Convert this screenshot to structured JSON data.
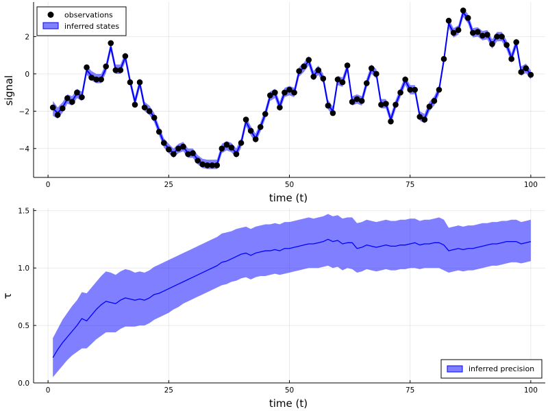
{
  "chart_data": [
    {
      "type": "line",
      "xlabel": "time (t)",
      "ylabel": "signal",
      "xlim": [
        -3,
        103
      ],
      "ylim": [
        -5.55,
        3.85
      ],
      "xticks": [
        0,
        25,
        50,
        75,
        100
      ],
      "yticks": [
        -4,
        -2,
        0,
        2
      ],
      "xtick_labels": [
        "0",
        "25",
        "50",
        "75",
        "100"
      ],
      "ytick_labels": [
        "−4",
        "−2",
        "0",
        "2"
      ],
      "grid": true,
      "legend_position": "top-left",
      "legend": [
        {
          "label": "observations",
          "kind": "marker",
          "color": "#000000"
        },
        {
          "label": "inferred states",
          "kind": "patch",
          "color": "#0000ff"
        }
      ],
      "x": [
        1,
        2,
        3,
        4,
        5,
        6,
        7,
        8,
        9,
        10,
        11,
        12,
        13,
        14,
        15,
        16,
        17,
        18,
        19,
        20,
        21,
        22,
        23,
        24,
        25,
        26,
        27,
        28,
        29,
        30,
        31,
        32,
        33,
        34,
        35,
        36,
        37,
        38,
        39,
        40,
        41,
        42,
        43,
        44,
        45,
        46,
        47,
        48,
        49,
        50,
        51,
        52,
        53,
        54,
        55,
        56,
        57,
        58,
        59,
        60,
        61,
        62,
        63,
        64,
        65,
        66,
        67,
        68,
        69,
        70,
        71,
        72,
        73,
        74,
        75,
        76,
        77,
        78,
        79,
        80,
        81,
        82,
        83,
        84,
        85,
        86,
        87,
        88,
        89,
        90,
        91,
        92,
        93,
        94,
        95,
        96,
        97,
        98,
        99,
        100
      ],
      "series": [
        {
          "name": "observations",
          "kind": "scatter",
          "color": "#000000",
          "values": [
            -1.8,
            -2.2,
            -1.85,
            -1.3,
            -1.5,
            -1.0,
            -1.25,
            0.35,
            -0.2,
            -0.3,
            -0.3,
            0.4,
            1.65,
            0.2,
            0.2,
            0.95,
            -0.45,
            -1.65,
            -0.45,
            -1.8,
            -2.0,
            -2.35,
            -3.1,
            -3.7,
            -4.05,
            -4.3,
            -4.0,
            -3.9,
            -4.3,
            -4.25,
            -4.65,
            -4.85,
            -4.9,
            -4.9,
            -4.9,
            -4.0,
            -3.8,
            -3.95,
            -4.3,
            -3.7,
            -2.45,
            -3.05,
            -3.5,
            -2.85,
            -2.15,
            -1.15,
            -1.0,
            -1.8,
            -1.0,
            -0.85,
            -1.0,
            0.15,
            0.4,
            0.75,
            -0.15,
            0.2,
            -0.25,
            -1.7,
            -2.1,
            -0.3,
            -0.45,
            0.45,
            -1.5,
            -1.35,
            -1.45,
            -0.5,
            0.3,
            0.0,
            -1.65,
            -1.6,
            -2.55,
            -1.65,
            -1.0,
            -0.3,
            -0.85,
            -0.85,
            -2.3,
            -2.45,
            -1.75,
            -1.45,
            -0.85,
            0.8,
            2.85,
            2.2,
            2.35,
            3.4,
            3.0,
            2.2,
            2.25,
            2.05,
            2.1,
            1.6,
            2.0,
            2.0,
            1.55,
            0.8,
            1.7,
            0.1,
            0.3,
            -0.05
          ]
        },
        {
          "name": "inferred states",
          "kind": "line-band",
          "color": "#0000ff",
          "values": [
            -1.85,
            -2.1,
            -1.8,
            -1.35,
            -1.45,
            -1.05,
            -1.2,
            0.2,
            -0.1,
            -0.25,
            -0.25,
            0.3,
            1.45,
            0.25,
            0.25,
            0.9,
            -0.4,
            -1.5,
            -0.5,
            -1.75,
            -1.95,
            -2.35,
            -3.05,
            -3.7,
            -4.0,
            -4.25,
            -4.0,
            -3.9,
            -4.25,
            -4.25,
            -4.6,
            -4.8,
            -4.85,
            -4.85,
            -4.85,
            -4.0,
            -3.85,
            -3.95,
            -4.25,
            -3.7,
            -2.55,
            -3.05,
            -3.45,
            -2.85,
            -2.15,
            -1.2,
            -1.05,
            -1.75,
            -1.0,
            -0.9,
            -1.0,
            0.1,
            0.35,
            0.7,
            -0.1,
            0.2,
            -0.25,
            -1.65,
            -2.0,
            -0.35,
            -0.45,
            0.35,
            -1.45,
            -1.35,
            -1.45,
            -0.5,
            0.25,
            0.0,
            -1.6,
            -1.6,
            -2.45,
            -1.65,
            -1.0,
            -0.35,
            -0.85,
            -0.85,
            -2.25,
            -2.4,
            -1.75,
            -1.45,
            -0.85,
            0.75,
            2.7,
            2.2,
            2.35,
            3.3,
            2.95,
            2.2,
            2.25,
            2.05,
            2.1,
            1.6,
            2.0,
            2.0,
            1.55,
            0.85,
            1.65,
            0.15,
            0.3,
            -0.05
          ],
          "band_halfwidth": [
            0.4,
            0.3,
            0.28,
            0.25,
            0.25,
            0.25,
            0.25,
            0.25,
            0.25,
            0.25,
            0.25,
            0.25,
            0.25,
            0.25,
            0.25,
            0.25,
            0.25,
            0.25,
            0.25,
            0.25,
            0.25,
            0.25,
            0.25,
            0.25,
            0.25,
            0.25,
            0.25,
            0.25,
            0.25,
            0.25,
            0.25,
            0.25,
            0.25,
            0.25,
            0.25,
            0.25,
            0.25,
            0.25,
            0.25,
            0.25,
            0.25,
            0.25,
            0.25,
            0.25,
            0.25,
            0.25,
            0.25,
            0.25,
            0.25,
            0.25,
            0.25,
            0.25,
            0.25,
            0.25,
            0.25,
            0.25,
            0.25,
            0.25,
            0.25,
            0.25,
            0.25,
            0.25,
            0.25,
            0.25,
            0.25,
            0.25,
            0.25,
            0.25,
            0.25,
            0.25,
            0.25,
            0.25,
            0.25,
            0.25,
            0.25,
            0.25,
            0.25,
            0.25,
            0.25,
            0.25,
            0.25,
            0.25,
            0.25,
            0.25,
            0.25,
            0.25,
            0.25,
            0.25,
            0.25,
            0.25,
            0.25,
            0.25,
            0.25,
            0.25,
            0.25,
            0.25,
            0.25,
            0.25,
            0.25,
            0.25
          ]
        }
      ]
    },
    {
      "type": "area",
      "xlabel": "time (t)",
      "ylabel": "τ",
      "xlim": [
        -3,
        103
      ],
      "ylim": [
        0,
        1.52
      ],
      "xticks": [
        0,
        25,
        50,
        75,
        100
      ],
      "yticks": [
        0.0,
        0.5,
        1.0,
        1.5
      ],
      "xtick_labels": [
        "0",
        "25",
        "50",
        "75",
        "100"
      ],
      "ytick_labels": [
        "0.0",
        "0.5",
        "1.0",
        "1.5"
      ],
      "grid": true,
      "legend_position": "bottom-right",
      "legend": [
        {
          "label": "inferred precision",
          "kind": "patch",
          "color": "#0000ff"
        }
      ],
      "x": [
        1,
        2,
        3,
        4,
        5,
        6,
        7,
        8,
        9,
        10,
        11,
        12,
        13,
        14,
        15,
        16,
        17,
        18,
        19,
        20,
        21,
        22,
        23,
        24,
        25,
        26,
        27,
        28,
        29,
        30,
        31,
        32,
        33,
        34,
        35,
        36,
        37,
        38,
        39,
        40,
        41,
        42,
        43,
        44,
        45,
        46,
        47,
        48,
        49,
        50,
        51,
        52,
        53,
        54,
        55,
        56,
        57,
        58,
        59,
        60,
        61,
        62,
        63,
        64,
        65,
        66,
        67,
        68,
        69,
        70,
        71,
        72,
        73,
        74,
        75,
        76,
        77,
        78,
        79,
        80,
        81,
        82,
        83,
        84,
        85,
        86,
        87,
        88,
        89,
        90,
        91,
        92,
        93,
        94,
        95,
        96,
        97,
        98,
        99,
        100
      ],
      "series": [
        {
          "name": "inferred precision",
          "kind": "line-band",
          "color": "#0000ff",
          "values": [
            0.22,
            0.29,
            0.35,
            0.4,
            0.45,
            0.5,
            0.56,
            0.54,
            0.59,
            0.64,
            0.68,
            0.71,
            0.7,
            0.69,
            0.72,
            0.74,
            0.73,
            0.72,
            0.73,
            0.72,
            0.74,
            0.77,
            0.78,
            0.8,
            0.82,
            0.84,
            0.86,
            0.88,
            0.9,
            0.92,
            0.94,
            0.96,
            0.98,
            1.0,
            1.02,
            1.05,
            1.06,
            1.08,
            1.1,
            1.12,
            1.13,
            1.11,
            1.13,
            1.14,
            1.15,
            1.15,
            1.16,
            1.15,
            1.17,
            1.17,
            1.18,
            1.19,
            1.2,
            1.21,
            1.21,
            1.22,
            1.23,
            1.25,
            1.23,
            1.24,
            1.21,
            1.22,
            1.22,
            1.17,
            1.18,
            1.2,
            1.19,
            1.18,
            1.19,
            1.2,
            1.19,
            1.19,
            1.2,
            1.2,
            1.21,
            1.22,
            1.2,
            1.21,
            1.21,
            1.22,
            1.22,
            1.2,
            1.15,
            1.16,
            1.17,
            1.16,
            1.17,
            1.17,
            1.18,
            1.19,
            1.2,
            1.21,
            1.21,
            1.22,
            1.23,
            1.23,
            1.23,
            1.21,
            1.22,
            1.23
          ],
          "band_lower": [
            0.05,
            0.1,
            0.15,
            0.2,
            0.24,
            0.27,
            0.3,
            0.3,
            0.34,
            0.38,
            0.41,
            0.44,
            0.44,
            0.44,
            0.47,
            0.49,
            0.49,
            0.49,
            0.5,
            0.5,
            0.52,
            0.55,
            0.57,
            0.59,
            0.61,
            0.64,
            0.66,
            0.69,
            0.71,
            0.73,
            0.75,
            0.77,
            0.79,
            0.81,
            0.83,
            0.85,
            0.86,
            0.88,
            0.89,
            0.91,
            0.92,
            0.9,
            0.92,
            0.93,
            0.93,
            0.94,
            0.95,
            0.94,
            0.95,
            0.96,
            0.97,
            0.98,
            0.99,
            1.0,
            1.0,
            1.0,
            1.01,
            1.02,
            1.0,
            1.01,
            0.98,
            1.0,
            0.99,
            0.96,
            0.97,
            0.99,
            0.98,
            0.97,
            0.98,
            0.99,
            0.98,
            0.98,
            0.99,
            0.99,
            1.0,
            1.0,
            0.99,
            1.0,
            1.0,
            1.0,
            1.0,
            0.98,
            0.96,
            0.97,
            0.98,
            0.97,
            0.98,
            0.98,
            0.99,
            1.0,
            1.01,
            1.02,
            1.02,
            1.03,
            1.04,
            1.05,
            1.05,
            1.04,
            1.05,
            1.06
          ],
          "band_upper": [
            0.39,
            0.47,
            0.55,
            0.61,
            0.67,
            0.72,
            0.79,
            0.78,
            0.83,
            0.88,
            0.93,
            0.97,
            0.96,
            0.94,
            0.97,
            0.99,
            0.98,
            0.96,
            0.97,
            0.96,
            0.98,
            1.01,
            1.03,
            1.05,
            1.07,
            1.09,
            1.11,
            1.13,
            1.15,
            1.17,
            1.19,
            1.21,
            1.23,
            1.25,
            1.27,
            1.3,
            1.31,
            1.32,
            1.34,
            1.35,
            1.36,
            1.34,
            1.36,
            1.37,
            1.38,
            1.38,
            1.39,
            1.38,
            1.4,
            1.4,
            1.41,
            1.42,
            1.43,
            1.44,
            1.43,
            1.44,
            1.45,
            1.47,
            1.45,
            1.46,
            1.43,
            1.44,
            1.44,
            1.39,
            1.4,
            1.42,
            1.41,
            1.4,
            1.41,
            1.42,
            1.41,
            1.41,
            1.42,
            1.42,
            1.43,
            1.43,
            1.41,
            1.42,
            1.42,
            1.43,
            1.44,
            1.42,
            1.35,
            1.36,
            1.37,
            1.36,
            1.37,
            1.37,
            1.38,
            1.39,
            1.39,
            1.4,
            1.4,
            1.41,
            1.41,
            1.42,
            1.42,
            1.4,
            1.41,
            1.42
          ]
        }
      ]
    }
  ]
}
